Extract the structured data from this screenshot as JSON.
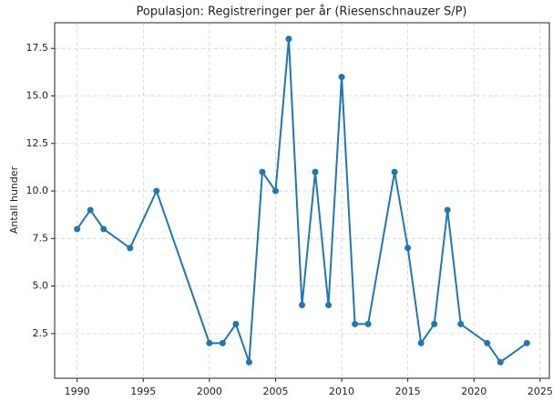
{
  "chart_data": {
    "type": "line",
    "title": "Populasjon: Registreringer per år (Riesenschnauzer S/P)",
    "ylabel": "Antall hunder",
    "x": [
      1990,
      1991,
      1992,
      1994,
      1996,
      2000,
      2001,
      2002,
      2003,
      2004,
      2005,
      2006,
      2007,
      2008,
      2009,
      2010,
      2011,
      2012,
      2014,
      2015,
      2016,
      2017,
      2018,
      2019,
      2021,
      2022,
      2024
    ],
    "series": [
      {
        "name": "Registreringer",
        "color": "#1f77b4",
        "values": [
          8,
          9,
          8,
          7,
          10,
          2,
          2,
          3,
          1,
          11,
          10,
          18,
          4,
          11,
          4,
          16,
          3,
          3,
          11,
          7,
          2,
          3,
          9,
          3,
          2,
          1,
          2
        ]
      }
    ],
    "xlim": [
      1988.3,
      2025.7
    ],
    "xticks": [
      1990,
      1995,
      2000,
      2005,
      2010,
      2015,
      2020,
      2025
    ],
    "ylim": [
      0.15,
      18.85
    ],
    "yticks": [
      2.5,
      {
        "value": 5,
        "label": "5.0"
      },
      7.5,
      {
        "value": 10,
        "label": "10.0"
      },
      12.5,
      {
        "value": 15,
        "label": "15.0"
      },
      17.5
    ],
    "grid": true
  }
}
